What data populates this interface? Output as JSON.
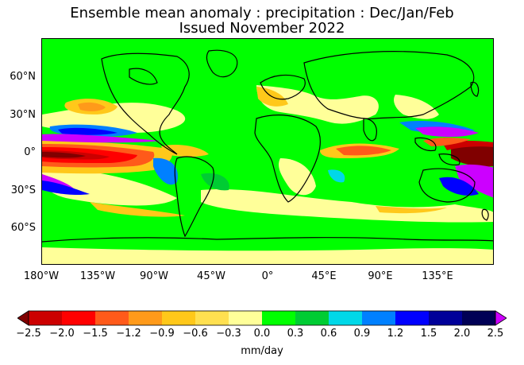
{
  "title": {
    "line1": "Ensemble mean anomaly : precipitation : Dec/Jan/Feb",
    "line2": "Issued November 2022"
  },
  "map": {
    "lat_labels": [
      "60°N",
      "30°N",
      "0°",
      "30°S",
      "60°S"
    ],
    "lon_labels": [
      "180°W",
      "135°W",
      "90°W",
      "45°W",
      "0°",
      "45°E",
      "90°E",
      "135°E"
    ]
  },
  "colorbar": {
    "ticks": [
      "−2.5",
      "−2.0",
      "−1.5",
      "−1.2",
      "−0.9",
      "−0.6",
      "−0.3",
      "0.0",
      "0.3",
      "0.6",
      "0.9",
      "1.2",
      "1.5",
      "2.0",
      "2.5"
    ],
    "label": "mm/day",
    "colors": [
      "#800000",
      "#cc0000",
      "#ff0000",
      "#ff5a1a",
      "#ff9a1a",
      "#ffc81a",
      "#ffe050",
      "#ffff99",
      "#00ff00",
      "#00cc33",
      "#00d8e8",
      "#0080ff",
      "#0000ff",
      "#000099",
      "#000055",
      "#cc00ff"
    ]
  }
}
